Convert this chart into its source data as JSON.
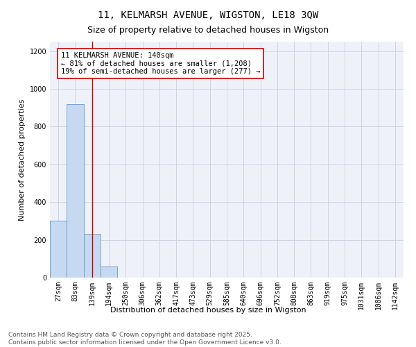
{
  "title": "11, KELMARSH AVENUE, WIGSTON, LE18 3QW",
  "subtitle": "Size of property relative to detached houses in Wigston",
  "xlabel": "Distribution of detached houses by size in Wigston",
  "ylabel": "Number of detached properties",
  "categories": [
    "27sqm",
    "83sqm",
    "139sqm",
    "194sqm",
    "250sqm",
    "306sqm",
    "362sqm",
    "417sqm",
    "473sqm",
    "529sqm",
    "585sqm",
    "640sqm",
    "696sqm",
    "752sqm",
    "808sqm",
    "863sqm",
    "919sqm",
    "975sqm",
    "1031sqm",
    "1086sqm",
    "1142sqm"
  ],
  "values": [
    300,
    920,
    230,
    60,
    0,
    0,
    0,
    0,
    0,
    0,
    0,
    0,
    0,
    0,
    0,
    0,
    0,
    0,
    0,
    0,
    0
  ],
  "bar_color": "#c6d9f0",
  "bar_edge_color": "#5b9bd5",
  "property_line_x": 2,
  "property_line_color": "#cc0000",
  "annotation_text": "11 KELMARSH AVENUE: 140sqm\n← 81% of detached houses are smaller (1,208)\n19% of semi-detached houses are larger (277) →",
  "annotation_box_color": "#cc0000",
  "ylim": [
    0,
    1250
  ],
  "yticks": [
    0,
    200,
    400,
    600,
    800,
    1000,
    1200
  ],
  "grid_color": "#c8d0dc",
  "background_color": "#eef2f8",
  "footer_line1": "Contains HM Land Registry data © Crown copyright and database right 2025.",
  "footer_line2": "Contains public sector information licensed under the Open Government Licence v3.0.",
  "title_fontsize": 10,
  "subtitle_fontsize": 9,
  "axis_label_fontsize": 8,
  "tick_fontsize": 7,
  "annotation_fontsize": 7.5,
  "footer_fontsize": 6.5
}
